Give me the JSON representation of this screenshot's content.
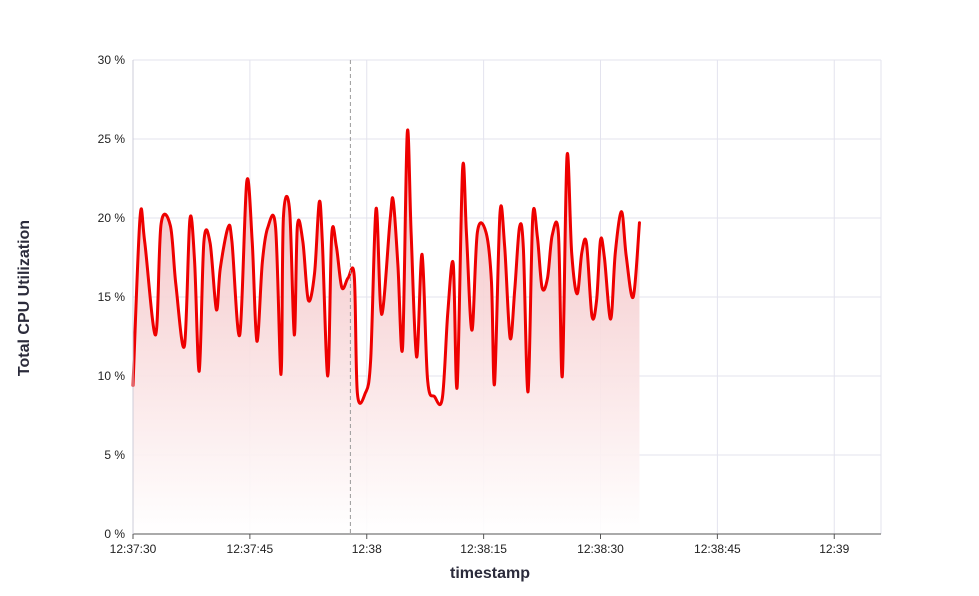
{
  "chart_data": {
    "type": "area",
    "title": "",
    "xlabel": "timestamp",
    "ylabel": "Total CPU Utilization",
    "ylim": [
      0,
      30
    ],
    "y_ticks": [
      {
        "value": 0,
        "label": "0 %"
      },
      {
        "value": 5,
        "label": "5 %"
      },
      {
        "value": 10,
        "label": "10 %"
      },
      {
        "value": 15,
        "label": "15 %"
      },
      {
        "value": 20,
        "label": "20 %"
      },
      {
        "value": 25,
        "label": "25 %"
      },
      {
        "value": 30,
        "label": "30 %"
      }
    ],
    "xlim": [
      "12:37:30",
      "12:39:06"
    ],
    "x_ticks": [
      {
        "value": "12:37:30",
        "label": "12:37:30"
      },
      {
        "value": "12:37:45",
        "label": "12:37:45"
      },
      {
        "value": "12:38:00",
        "label": "12:38"
      },
      {
        "value": "12:38:15",
        "label": "12:38:15"
      },
      {
        "value": "12:38:30",
        "label": "12:38:30"
      },
      {
        "value": "12:38:45",
        "label": "12:38:45"
      },
      {
        "value": "12:39:00",
        "label": "12:39"
      }
    ],
    "crosshair_x": "12:37:57.9",
    "grid": true,
    "line_color": "#ee0000",
    "fill_color_top": "#f2b8bb",
    "fill_color_bottom": "#ffffff",
    "series": [
      {
        "points": [
          [
            "12:37:30.0",
            9.4
          ],
          [
            "12:37:30.9",
            20.0
          ],
          [
            "12:37:31.5",
            18.5
          ],
          [
            "12:37:32.9",
            12.6
          ],
          [
            "12:37:33.6",
            19.6
          ],
          [
            "12:37:34.8",
            19.5
          ],
          [
            "12:37:35.5",
            15.8
          ],
          [
            "12:37:36.6",
            11.9
          ],
          [
            "12:37:37.3",
            19.9
          ],
          [
            "12:37:37.9",
            17.3
          ],
          [
            "12:37:38.5",
            10.3
          ],
          [
            "12:37:39.1",
            18.5
          ],
          [
            "12:37:39.9",
            18.4
          ],
          [
            "12:37:40.7",
            14.2
          ],
          [
            "12:37:41.2",
            16.8
          ],
          [
            "12:37:42.2",
            19.4
          ],
          [
            "12:37:42.7",
            18.5
          ],
          [
            "12:37:43.7",
            12.6
          ],
          [
            "12:37:44.6",
            22.3
          ],
          [
            "12:37:45.3",
            18.5
          ],
          [
            "12:37:45.9",
            12.2
          ],
          [
            "12:37:46.6",
            17.2
          ],
          [
            "12:37:47.3",
            19.4
          ],
          [
            "12:37:48.3",
            19.4
          ],
          [
            "12:37:49.0",
            10.1
          ],
          [
            "12:37:49.3",
            20.0
          ],
          [
            "12:37:50.1",
            20.5
          ],
          [
            "12:37:50.7",
            12.6
          ],
          [
            "12:37:51.1",
            19.5
          ],
          [
            "12:37:51.8",
            18.5
          ],
          [
            "12:37:52.5",
            14.8
          ],
          [
            "12:37:53.3",
            16.5
          ],
          [
            "12:37:53.9",
            21.0
          ],
          [
            "12:37:54.3",
            18.5
          ],
          [
            "12:37:55.0",
            10.0
          ],
          [
            "12:37:55.5",
            18.9
          ],
          [
            "12:37:56.1",
            18.2
          ],
          [
            "12:37:56.8",
            15.6
          ],
          [
            "12:37:57.6",
            16.2
          ],
          [
            "12:37:58.4",
            16.3
          ],
          [
            "12:37:58.8",
            8.9
          ],
          [
            "12:37:59.8",
            8.9
          ],
          [
            "12:38:00.5",
            11.0
          ],
          [
            "12:38:01.2",
            20.6
          ],
          [
            "12:38:01.9",
            13.9
          ],
          [
            "12:38:03.0",
            19.9
          ],
          [
            "12:38:03.4",
            21.1
          ],
          [
            "12:38:04.0",
            17.0
          ],
          [
            "12:38:04.6",
            11.8
          ],
          [
            "12:38:05.2",
            25.4
          ],
          [
            "12:38:05.7",
            19.0
          ],
          [
            "12:38:06.4",
            11.2
          ],
          [
            "12:38:07.1",
            17.7
          ],
          [
            "12:38:07.8",
            9.8
          ],
          [
            "12:38:08.7",
            8.7
          ],
          [
            "12:38:09.7",
            8.6
          ],
          [
            "12:38:10.4",
            14.0
          ],
          [
            "12:38:11.1",
            17.1
          ],
          [
            "12:38:11.6",
            9.3
          ],
          [
            "12:38:12.3",
            23.1
          ],
          [
            "12:38:12.8",
            19.0
          ],
          [
            "12:38:13.5",
            12.9
          ],
          [
            "12:38:14.2",
            19.1
          ],
          [
            "12:38:15.3",
            19.1
          ],
          [
            "12:38:16.0",
            16.0
          ],
          [
            "12:38:16.4",
            9.5
          ],
          [
            "12:38:17.1",
            20.3
          ],
          [
            "12:38:17.7",
            18.2
          ],
          [
            "12:38:18.4",
            12.4
          ],
          [
            "12:38:19.0",
            15.5
          ],
          [
            "12:38:19.6",
            19.4
          ],
          [
            "12:38:20.1",
            18.1
          ],
          [
            "12:38:20.7",
            9.0
          ],
          [
            "12:38:21.3",
            20.0
          ],
          [
            "12:38:21.9",
            18.8
          ],
          [
            "12:38:22.5",
            15.6
          ],
          [
            "12:38:23.2",
            16.2
          ],
          [
            "12:38:23.8",
            18.9
          ],
          [
            "12:38:24.6",
            19.0
          ],
          [
            "12:38:25.1",
            10.0
          ],
          [
            "12:38:25.7",
            23.9
          ],
          [
            "12:38:26.3",
            17.8
          ],
          [
            "12:38:27.0",
            15.2
          ],
          [
            "12:38:27.6",
            17.8
          ],
          [
            "12:38:28.2",
            18.4
          ],
          [
            "12:38:28.9",
            13.8
          ],
          [
            "12:38:29.5",
            14.8
          ],
          [
            "12:38:30.0",
            18.6
          ],
          [
            "12:38:30.5",
            17.5
          ],
          [
            "12:38:31.3",
            13.6
          ],
          [
            "12:38:31.9",
            17.8
          ],
          [
            "12:38:32.7",
            20.4
          ],
          [
            "12:38:33.3",
            17.6
          ],
          [
            "12:38:34.2",
            15.0
          ],
          [
            "12:38:35.0",
            19.7
          ]
        ]
      }
    ]
  }
}
